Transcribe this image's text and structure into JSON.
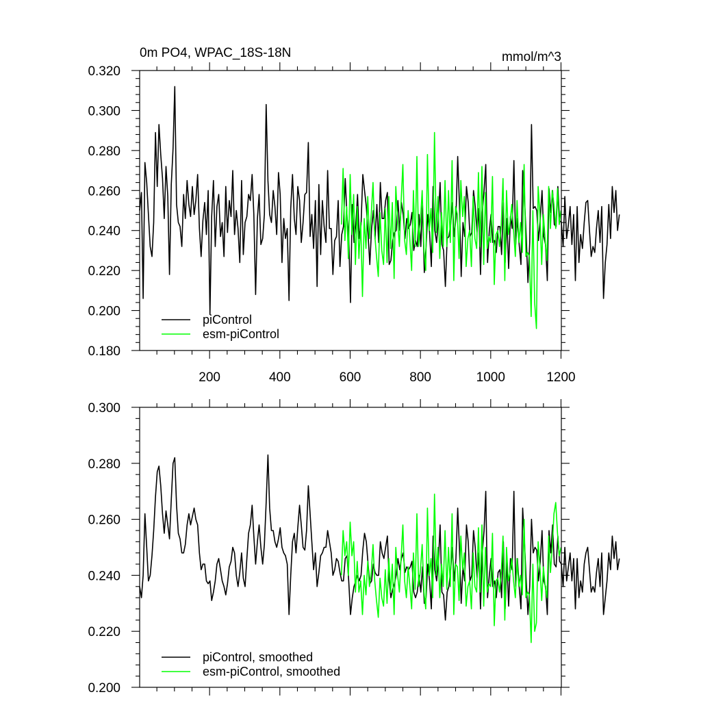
{
  "figure": {
    "left_title": "0m PO4, WPAC_18S-18N",
    "right_title": "mmol/m^3"
  },
  "colors": {
    "piControl": "#000000",
    "esm_piControl": "#00ff00",
    "axes": "#000000"
  },
  "chart_data": [
    {
      "type": "line",
      "title": "0m PO4, WPAC_18S-18N",
      "units": "mmol/m^3",
      "xlim": [
        1,
        1201
      ],
      "ylim": [
        0.18,
        0.32
      ],
      "xticks": [
        200,
        400,
        600,
        800,
        1000,
        1200
      ],
      "yticks": [
        0.18,
        0.2,
        0.22,
        0.24,
        0.26,
        0.28,
        0.3,
        0.32
      ],
      "ytick_labels": [
        "0.180",
        "0.200",
        "0.220",
        "0.240",
        "0.260",
        "0.280",
        "0.300",
        "0.320"
      ],
      "grid": false,
      "legend": "bottom-left",
      "series": [
        {
          "name": "piControl",
          "color": "#000000",
          "x_start": 1,
          "x_step": 5,
          "values": [
            0.25,
            0.259,
            0.206,
            0.274,
            0.264,
            0.248,
            0.232,
            0.227,
            0.244,
            0.289,
            0.262,
            0.293,
            0.278,
            0.266,
            0.246,
            0.272,
            0.257,
            0.218,
            0.263,
            0.281,
            0.312,
            0.253,
            0.244,
            0.242,
            0.232,
            0.258,
            0.246,
            0.265,
            0.253,
            0.247,
            0.262,
            0.248,
            0.255,
            0.268,
            0.241,
            0.227,
            0.245,
            0.254,
            0.238,
            0.26,
            0.198,
            0.247,
            0.265,
            0.232,
            0.252,
            0.258,
            0.237,
            0.244,
            0.227,
            0.262,
            0.239,
            0.255,
            0.247,
            0.27,
            0.238,
            0.25,
            0.241,
            0.224,
            0.265,
            0.228,
            0.244,
            0.247,
            0.258,
            0.255,
            0.268,
            0.248,
            0.208,
            0.246,
            0.258,
            0.233,
            0.236,
            0.248,
            0.303,
            0.265,
            0.248,
            0.244,
            0.26,
            0.252,
            0.238,
            0.269,
            0.258,
            0.224,
            0.246,
            0.236,
            0.241,
            0.205,
            0.251,
            0.268,
            0.246,
            0.238,
            0.262,
            0.255,
            0.234,
            0.244,
            0.258,
            0.259,
            0.284,
            0.237,
            0.248,
            0.231,
            0.255,
            0.212,
            0.263,
            0.228,
            0.255,
            0.242,
            0.234,
            0.27,
            0.241,
            0.241,
            0.218,
            0.235,
            0.237,
            0.255,
            0.222,
            0.238,
            0.242,
            0.266,
            0.247,
            0.237,
            0.204,
            0.253,
            0.234,
            0.243,
            0.258,
            0.236,
            0.243,
            0.268,
            0.26,
            0.252,
            0.238,
            0.223,
            0.241,
            0.25,
            0.236,
            0.253,
            0.234,
            0.264,
            0.246,
            0.246,
            0.255,
            0.259,
            0.223,
            0.225,
            0.235,
            0.239,
            0.24,
            0.255,
            0.24,
            0.254,
            0.248,
            0.236,
            0.246,
            0.241,
            0.243,
            0.249,
            0.23,
            0.235,
            0.232,
            0.248,
            0.232,
            0.253,
            0.219,
            0.232,
            0.248,
            0.239,
            0.222,
            0.262,
            0.24,
            0.234,
            0.245,
            0.264,
            0.233,
            0.23,
            0.212,
            0.236,
            0.237,
            0.243,
            0.254,
            0.237,
            0.246,
            0.277,
            0.253,
            0.217,
            0.244,
            0.237,
            0.262,
            0.254,
            0.237,
            0.239,
            0.26,
            0.252,
            0.239,
            0.251,
            0.218,
            0.249,
            0.26,
            0.273,
            0.224,
            0.24,
            0.248,
            0.234,
            0.235,
            0.229,
            0.242,
            0.242,
            0.228,
            0.254,
            0.224,
            0.246,
            0.221,
            0.247,
            0.241,
            0.275,
            0.233,
            0.246,
            0.233,
            0.223,
            0.27,
            0.256,
            0.237,
            0.214,
            0.234,
            0.293,
            0.251,
            0.252,
            0.25,
            0.235,
            0.246,
            0.26,
            0.237,
            0.233,
            0.215,
            0.261,
            0.249,
            0.26,
            0.243,
            0.242,
            0.262,
            0.245,
            0.244,
            0.232,
            0.257,
            0.236,
            0.243,
            0.252,
            0.233,
            0.248,
            0.215,
            0.252,
            0.224,
            0.238,
            0.231,
            0.244,
            0.254,
            0.255,
            0.24,
            0.227,
            0.232,
            0.229,
            0.241,
            0.25,
            0.234,
            0.252,
            0.206,
            0.224,
            0.233,
            0.253,
            0.236,
            0.262,
            0.249,
            0.26,
            0.24,
            0.248
          ]
        },
        {
          "name": "esm-piControl",
          "color": "#00ff00",
          "x_start": 575,
          "x_step": 5,
          "values": [
            0.243,
            0.271,
            0.235,
            0.252,
            0.226,
            0.268,
            0.238,
            0.258,
            0.223,
            0.252,
            0.226,
            0.244,
            0.207,
            0.246,
            0.231,
            0.257,
            0.236,
            0.248,
            0.264,
            0.238,
            0.227,
            0.217,
            0.249,
            0.23,
            0.223,
            0.251,
            0.224,
            0.257,
            0.231,
            0.254,
            0.216,
            0.262,
            0.245,
            0.232,
            0.254,
            0.273,
            0.235,
            0.228,
            0.25,
            0.235,
            0.22,
            0.26,
            0.232,
            0.277,
            0.232,
            0.245,
            0.26,
            0.23,
            0.22,
            0.278,
            0.24,
            0.251,
            0.229,
            0.289,
            0.239,
            0.257,
            0.226,
            0.249,
            0.232,
            0.265,
            0.232,
            0.26,
            0.234,
            0.275,
            0.215,
            0.252,
            0.248,
            0.226,
            0.265,
            0.247,
            0.257,
            0.222,
            0.236,
            0.24,
            0.222,
            0.257,
            0.236,
            0.231,
            0.269,
            0.232,
            0.272,
            0.223,
            0.259,
            0.231,
            0.237,
            0.234,
            0.267,
            0.213,
            0.238,
            0.24,
            0.232,
            0.243,
            0.266,
            0.215,
            0.26,
            0.238,
            0.244,
            0.253,
            0.24,
            0.227,
            0.255,
            0.234,
            0.244,
            0.229,
            0.273,
            0.227,
            0.229,
            0.227,
            0.197,
            0.25,
            0.204,
            0.191,
            0.262,
            0.248,
            0.223,
            0.248,
            0.235,
            0.225,
            0.262,
            0.241,
            0.26,
            0.253,
            0.241,
            0.261,
            0.243,
            0.25
          ]
        }
      ]
    },
    {
      "type": "line",
      "xlim": [
        1,
        1201
      ],
      "ylim": [
        0.2,
        0.3
      ],
      "xticks": [
        200,
        400,
        600,
        800,
        1000,
        1200
      ],
      "yticks": [
        0.2,
        0.22,
        0.24,
        0.26,
        0.28,
        0.3
      ],
      "ytick_labels": [
        "0.200",
        "0.220",
        "0.240",
        "0.260",
        "0.280",
        "0.300"
      ],
      "grid": false,
      "legend": "bottom-left",
      "series": [
        {
          "name": "piControl, smoothed",
          "color": "#000000",
          "x_start": 1,
          "x_step": 5,
          "values": [
            0.236,
            0.232,
            0.24,
            0.262,
            0.25,
            0.238,
            0.24,
            0.247,
            0.256,
            0.268,
            0.277,
            0.279,
            0.272,
            0.262,
            0.255,
            0.263,
            0.258,
            0.253,
            0.267,
            0.28,
            0.282,
            0.265,
            0.255,
            0.253,
            0.248,
            0.248,
            0.251,
            0.258,
            0.262,
            0.258,
            0.261,
            0.264,
            0.26,
            0.258,
            0.248,
            0.242,
            0.244,
            0.244,
            0.238,
            0.237,
            0.238,
            0.231,
            0.234,
            0.238,
            0.244,
            0.246,
            0.242,
            0.238,
            0.236,
            0.233,
            0.237,
            0.243,
            0.245,
            0.25,
            0.248,
            0.24,
            0.236,
            0.241,
            0.248,
            0.239,
            0.236,
            0.246,
            0.255,
            0.258,
            0.265,
            0.254,
            0.244,
            0.252,
            0.258,
            0.25,
            0.244,
            0.251,
            0.266,
            0.283,
            0.264,
            0.256,
            0.256,
            0.252,
            0.25,
            0.253,
            0.257,
            0.25,
            0.248,
            0.247,
            0.244,
            0.226,
            0.24,
            0.252,
            0.255,
            0.248,
            0.257,
            0.265,
            0.258,
            0.25,
            0.249,
            0.256,
            0.272,
            0.262,
            0.252,
            0.242,
            0.248,
            0.236,
            0.241,
            0.247,
            0.248,
            0.25,
            0.25,
            0.256,
            0.252,
            0.248,
            0.24,
            0.242,
            0.246,
            0.245,
            0.241,
            0.238,
            0.238,
            0.246,
            0.247,
            0.238,
            0.226,
            0.232,
            0.236,
            0.238,
            0.24,
            0.238,
            0.24,
            0.249,
            0.255,
            0.252,
            0.244,
            0.237,
            0.238,
            0.244,
            0.241,
            0.24,
            0.24,
            0.252,
            0.248,
            0.246,
            0.25,
            0.254,
            0.238,
            0.232,
            0.235,
            0.237,
            0.24,
            0.246,
            0.242,
            0.246,
            0.248,
            0.241,
            0.243,
            0.242,
            0.243,
            0.245,
            0.234,
            0.232,
            0.234,
            0.24,
            0.234,
            0.243,
            0.23,
            0.232,
            0.244,
            0.238,
            0.228,
            0.254,
            0.242,
            0.238,
            0.244,
            0.258,
            0.234,
            0.233,
            0.224,
            0.234,
            0.236,
            0.242,
            0.25,
            0.238,
            0.246,
            0.264,
            0.25,
            0.23,
            0.243,
            0.238,
            0.258,
            0.252,
            0.238,
            0.24,
            0.256,
            0.25,
            0.239,
            0.248,
            0.228,
            0.248,
            0.256,
            0.27,
            0.232,
            0.24,
            0.246,
            0.236,
            0.238,
            0.232,
            0.241,
            0.242,
            0.232,
            0.252,
            0.228,
            0.245,
            0.229,
            0.246,
            0.242,
            0.27,
            0.236,
            0.246,
            0.236,
            0.228,
            0.264,
            0.252,
            0.238,
            0.226,
            0.236,
            0.26,
            0.248,
            0.25,
            0.249,
            0.238,
            0.245,
            0.256,
            0.238,
            0.236,
            0.226,
            0.256,
            0.248,
            0.258,
            0.244,
            0.243,
            0.254,
            0.245,
            0.244,
            0.236,
            0.25,
            0.238,
            0.243,
            0.248,
            0.238,
            0.246,
            0.228,
            0.246,
            0.232,
            0.238,
            0.234,
            0.244,
            0.248,
            0.25,
            0.242,
            0.234,
            0.236,
            0.234,
            0.241,
            0.246,
            0.236,
            0.248,
            0.226,
            0.232,
            0.238,
            0.248,
            0.242,
            0.254,
            0.246,
            0.252,
            0.242,
            0.246
          ]
        },
        {
          "name": "esm-piControl, smoothed",
          "color": "#00ff00",
          "x_start": 575,
          "x_step": 5,
          "values": [
            0.24,
            0.256,
            0.247,
            0.252,
            0.24,
            0.259,
            0.247,
            0.252,
            0.234,
            0.245,
            0.234,
            0.238,
            0.226,
            0.24,
            0.233,
            0.245,
            0.236,
            0.241,
            0.251,
            0.238,
            0.231,
            0.225,
            0.239,
            0.232,
            0.229,
            0.242,
            0.23,
            0.246,
            0.234,
            0.244,
            0.226,
            0.25,
            0.24,
            0.234,
            0.246,
            0.258,
            0.238,
            0.232,
            0.243,
            0.236,
            0.228,
            0.248,
            0.235,
            0.262,
            0.236,
            0.242,
            0.251,
            0.234,
            0.228,
            0.264,
            0.24,
            0.246,
            0.232,
            0.269,
            0.24,
            0.25,
            0.232,
            0.244,
            0.236,
            0.256,
            0.235,
            0.25,
            0.236,
            0.262,
            0.226,
            0.244,
            0.243,
            0.231,
            0.254,
            0.242,
            0.248,
            0.229,
            0.236,
            0.238,
            0.228,
            0.248,
            0.236,
            0.234,
            0.257,
            0.234,
            0.258,
            0.229,
            0.25,
            0.234,
            0.237,
            0.236,
            0.255,
            0.222,
            0.238,
            0.239,
            0.234,
            0.241,
            0.254,
            0.224,
            0.25,
            0.238,
            0.241,
            0.246,
            0.238,
            0.232,
            0.246,
            0.236,
            0.24,
            0.233,
            0.26,
            0.232,
            0.234,
            0.233,
            0.216,
            0.244,
            0.22,
            0.223,
            0.252,
            0.243,
            0.231,
            0.243,
            0.236,
            0.232,
            0.254,
            0.241,
            0.25,
            0.262,
            0.266,
            0.255,
            0.247,
            0.25
          ]
        }
      ]
    }
  ]
}
